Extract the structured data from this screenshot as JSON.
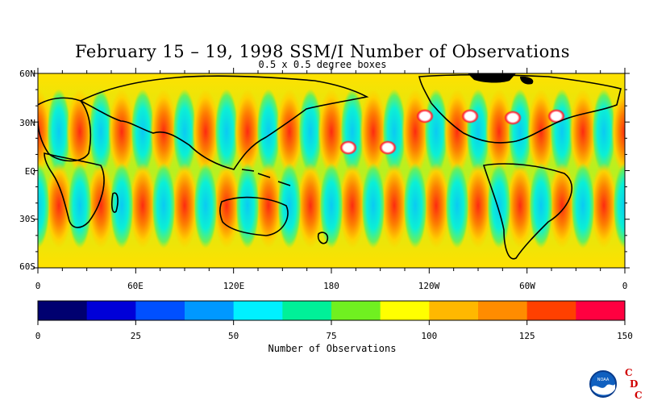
{
  "title": "February 15 – 19, 1998 SSM/I Number of Observations",
  "subtitle": "0.5 x 0.5 degree boxes",
  "map": {
    "lat_labels": [
      "60N",
      "30N",
      "EQ",
      "30S",
      "60S"
    ],
    "lon_labels": [
      "0",
      "60E",
      "120E",
      "180",
      "120W",
      "60W",
      "0"
    ]
  },
  "colorbar": {
    "label": "Number of Observations",
    "tick_labels": [
      "0",
      "25",
      "50",
      "75",
      "100",
      "125",
      "150"
    ],
    "ticks": [
      0,
      25,
      50,
      75,
      100,
      125,
      150
    ],
    "range": [
      0,
      150
    ],
    "colors": [
      "#000070",
      "#0000d8",
      "#0050ff",
      "#0098ff",
      "#00f0ff",
      "#00f098",
      "#70f020",
      "#ffff00",
      "#ffb800",
      "#ff8c00",
      "#ff4000",
      "#ff0040"
    ]
  },
  "logo": {
    "org": "NOAA",
    "letters": [
      "C",
      "D",
      "C"
    ]
  }
}
